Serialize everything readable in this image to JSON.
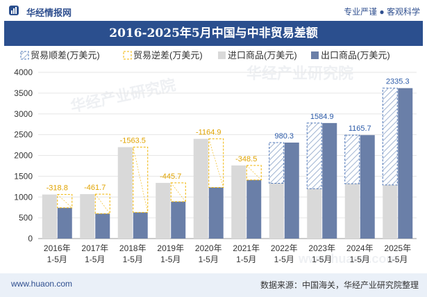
{
  "header": {
    "brand": "华经情报网",
    "right_text": "专业严谨 ● 客观科学"
  },
  "footer": {
    "website": "www.huaon.com",
    "source": "数据来源：中国海关，华经产业研究院整理"
  },
  "watermarks": [
    "华经产业研究院",
    "www.huaon.com"
  ],
  "colors": {
    "import": "#d9d9d9",
    "export": "#6a7fa8",
    "surplus": "#4f77b8",
    "deficit": "#f0b400",
    "header_bg": "#2b4f8e"
  },
  "chart_data": {
    "type": "bar",
    "title": "2016-2025年5月中国与中非贸易差额",
    "categories": [
      "2016年\n1-5月",
      "2017年\n1-5月",
      "2018年\n1-5月",
      "2019年\n1-5月",
      "2020年\n1-5月",
      "2021年\n1-5月",
      "2022年\n1-5月",
      "2023年\n1-5月",
      "2024年\n1-5月",
      "2025年\n1-5月"
    ],
    "legend": [
      "贸易顺差(万美元)",
      "贸易逆差(万美元)",
      "进口商品(万美元)",
      "出口商品(万美元)"
    ],
    "legend_position": "top",
    "ylim": [
      0,
      4000
    ],
    "yticks": [
      "0",
      "500",
      "1000",
      "1500",
      "2000",
      "2500",
      "3000",
      "3500",
      "4000"
    ],
    "series": [
      {
        "name": "进口商品(万美元)",
        "values": [
          1060,
          1070,
          2200,
          1340,
          2400,
          1760,
          1330,
          1200,
          1320,
          1290
        ]
      },
      {
        "name": "出口商品(万美元)",
        "values": [
          740,
          600,
          630,
          890,
          1230,
          1410,
          2310,
          2780,
          2490,
          3620
        ]
      }
    ],
    "balance": {
      "values": [
        -318.8,
        -461.7,
        -1563.5,
        -445.7,
        -1164.9,
        -348.5,
        980.3,
        1584.9,
        1165.7,
        2335.3
      ],
      "labels": [
        "-318.8",
        "-461.7",
        "-1563.5",
        "-445.7",
        "-1164.9",
        "-348.5",
        "980.3",
        "1584.9",
        "1165.7",
        "2335.3"
      ]
    }
  }
}
